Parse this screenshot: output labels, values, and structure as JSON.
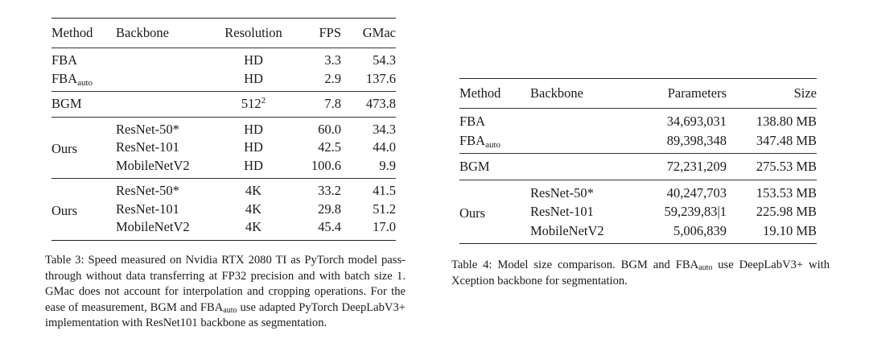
{
  "table3": {
    "headers": [
      "Method",
      "Backbone",
      "Resolution",
      "FPS",
      "GMac"
    ],
    "fba": {
      "method": "FBA",
      "res": "HD",
      "fps": "3.3",
      "gmac": "54.3"
    },
    "fba_auto": {
      "method_base": "FBA",
      "method_sub": "auto",
      "res": "HD",
      "fps": "2.9",
      "gmac": "137.6"
    },
    "bgm": {
      "method": "BGM",
      "res_base": "512",
      "res_sup": "2",
      "fps": "7.8",
      "gmac": "473.8"
    },
    "ours_hd": {
      "method": "Ours",
      "rows": [
        {
          "backbone": "ResNet-50*",
          "res": "HD",
          "fps": "60.0",
          "gmac": "34.3"
        },
        {
          "backbone": "ResNet-101",
          "res": "HD",
          "fps": "42.5",
          "gmac": "44.0"
        },
        {
          "backbone": "MobileNetV2",
          "res": "HD",
          "fps": "100.6",
          "gmac": "9.9"
        }
      ]
    },
    "ours_4k": {
      "method": "Ours",
      "rows": [
        {
          "backbone": "ResNet-50*",
          "res": "4K",
          "fps": "33.2",
          "gmac": "41.5"
        },
        {
          "backbone": "ResNet-101",
          "res": "4K",
          "fps": "29.8",
          "gmac": "51.2"
        },
        {
          "backbone": "MobileNetV2",
          "res": "4K",
          "fps": "45.4",
          "gmac": "17.0"
        }
      ]
    },
    "caption": {
      "p1": "Table 3: Speed measured on Nvidia RTX 2080 TI as PyTorch model pass-through without data transferring at FP32 precision and with batch size 1. GMac does not account for interpolation and cropping operations. For the ease of measurement, BGM and FBA",
      "sub": "auto",
      "p2": " use adapted PyTorch DeepLabV3+ implementation with ResNet101 backbone as segmentation."
    }
  },
  "table4": {
    "headers": [
      "Method",
      "Backbone",
      "Parameters",
      "Size"
    ],
    "fba": {
      "method": "FBA",
      "params": "34,693,031",
      "size": "138.80 MB"
    },
    "fba_auto": {
      "method_base": "FBA",
      "method_sub": "auto",
      "params": "89,398,348",
      "size": "347.48 MB"
    },
    "bgm": {
      "method": "BGM",
      "params": "72,231,209",
      "size": "275.53 MB"
    },
    "ours": {
      "method": "Ours",
      "rows": [
        {
          "backbone": "ResNet-50*",
          "params": "40,247,703",
          "size": "153.53 MB"
        },
        {
          "backbone": "ResNet-101",
          "params": "59,239,83|1",
          "size": "225.98 MB"
        },
        {
          "backbone": "MobileNetV2",
          "params": "5,006,839",
          "size": "19.10 MB"
        }
      ]
    },
    "caption": {
      "p1": "Table 4: Model size comparison. BGM and FBA",
      "sub": "auto",
      "p2": " use DeepLabV3+ with Xception backbone for segmentation."
    }
  }
}
